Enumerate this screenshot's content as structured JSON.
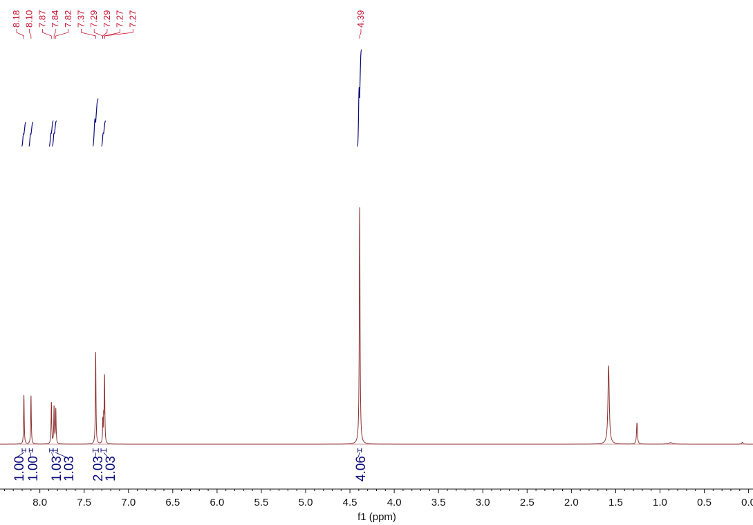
{
  "chart_data": {
    "type": "line",
    "title": "",
    "xlabel": "f1 (ppm)",
    "ylabel": "",
    "xlim": [
      8.45,
      -0.05
    ],
    "x_reversed": true,
    "grid": false,
    "x_ticks": [
      "8.0",
      "7.5",
      "7.0",
      "6.5",
      "6.0",
      "5.5",
      "5.0",
      "4.5",
      "4.0",
      "3.5",
      "3.0",
      "2.5",
      "2.0",
      "1.5",
      "1.0",
      "0.5",
      "0.0"
    ],
    "peak_labels": [
      "8.18",
      "8.10",
      "7.87",
      "7.84",
      "7.82",
      "7.37",
      "7.29",
      "7.29",
      "7.27",
      "7.27",
      "4.39"
    ],
    "integrals": [
      {
        "label": "1.00",
        "from": 8.2,
        "to": 8.16
      },
      {
        "label": "1.00",
        "from": 8.12,
        "to": 8.08
      },
      {
        "label": "1.03",
        "from": 7.89,
        "to": 7.85
      },
      {
        "label": "1.03",
        "from": 7.85,
        "to": 7.8
      },
      {
        "label": "2.03",
        "from": 7.4,
        "to": 7.34
      },
      {
        "label": "1.03",
        "from": 7.31,
        "to": 7.25
      },
      {
        "label": "4.06",
        "from": 4.41,
        "to": 4.37
      }
    ],
    "series": [
      {
        "peaks": [
          {
            "x": 8.18,
            "y": 0.205,
            "w": 0.004
          },
          {
            "x": 8.1,
            "y": 0.205,
            "w": 0.004
          },
          {
            "x": 7.87,
            "y": 0.175,
            "w": 0.004
          },
          {
            "x": 7.84,
            "y": 0.155,
            "w": 0.004
          },
          {
            "x": 7.82,
            "y": 0.145,
            "w": 0.004
          },
          {
            "x": 7.37,
            "y": 0.385,
            "w": 0.004
          },
          {
            "x": 7.29,
            "y": 0.096,
            "w": 0.003
          },
          {
            "x": 7.28,
            "y": 0.096,
            "w": 0.003
          },
          {
            "x": 7.27,
            "y": 0.285,
            "w": 0.004
          },
          {
            "x": 4.39,
            "y": 1.0,
            "w": 0.005
          },
          {
            "x": 1.58,
            "y": 0.33,
            "w": 0.009
          },
          {
            "x": 1.26,
            "y": 0.09,
            "w": 0.006
          },
          {
            "x": 0.88,
            "y": 0.006,
            "w": 0.03
          },
          {
            "x": 0.07,
            "y": 0.008,
            "w": 0.008
          }
        ]
      }
    ],
    "colors": {
      "spectrum": "#8b2e2e",
      "integral": "#0a0a7a",
      "peak_label": "#c8102e",
      "axis": "#111111"
    }
  }
}
